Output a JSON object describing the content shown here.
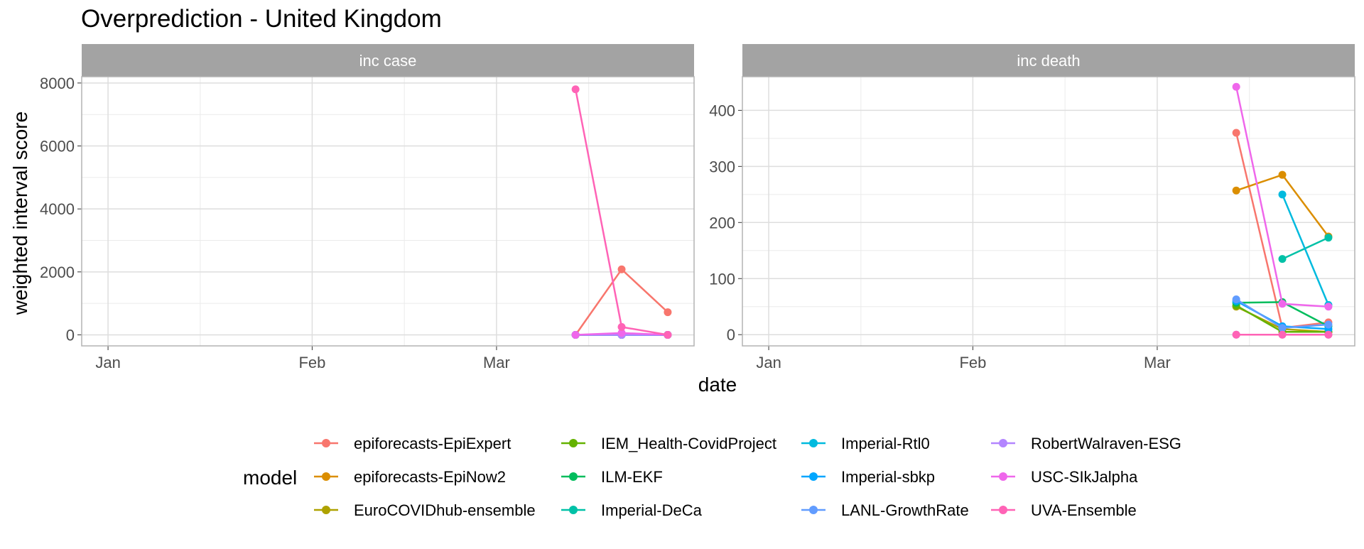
{
  "title": "Overprediction - United Kingdom",
  "xlabel": "date",
  "ylabel": "weighted interval score",
  "legend": {
    "title": "model",
    "placement": "bottom",
    "items": [
      {
        "name": "epiforecasts-EpiExpert",
        "color": "#F8766D"
      },
      {
        "name": "epiforecasts-EpiNow2",
        "color": "#DB8E00"
      },
      {
        "name": "EuroCOVIDhub-ensemble",
        "color": "#AEA200"
      },
      {
        "name": "IEM_Health-CovidProject",
        "color": "#64B200"
      },
      {
        "name": "ILM-EKF",
        "color": "#00BD5C"
      },
      {
        "name": "Imperial-DeCa",
        "color": "#00C1A7"
      },
      {
        "name": "Imperial-Rtl0",
        "color": "#00BADE"
      },
      {
        "name": "Imperial-sbkp",
        "color": "#00A6FF"
      },
      {
        "name": "LANL-GrowthRate",
        "color": "#619CFF"
      },
      {
        "name": "RobertWalraven-ESG",
        "color": "#B385FF"
      },
      {
        "name": "USC-SIkJalpha",
        "color": "#EF67EB"
      },
      {
        "name": "UVA-Ensemble",
        "color": "#FF63B6"
      }
    ]
  },
  "chart_data": [
    {
      "type": "line",
      "facet": "inc case",
      "x_ticks": [
        "Jan",
        "Feb",
        "Mar"
      ],
      "y_ticks": [
        "0",
        "2000",
        "4000",
        "6000",
        "8000"
      ],
      "ylim": [
        -350,
        8200
      ],
      "grid": true,
      "x": [
        "2021-03-13",
        "2021-03-20",
        "2021-03-27"
      ],
      "series": [
        {
          "name": "epiforecasts-EpiExpert",
          "values": [
            0,
            2080,
            720
          ]
        },
        {
          "name": "epiforecasts-EpiNow2",
          "values": [
            0,
            30,
            0
          ]
        },
        {
          "name": "EuroCOVIDhub-ensemble",
          "values": [
            0,
            0,
            0
          ]
        },
        {
          "name": "IEM_Health-CovidProject",
          "values": [
            0,
            0,
            0
          ]
        },
        {
          "name": "ILM-EKF",
          "values": [
            0,
            0,
            0
          ]
        },
        {
          "name": "Imperial-DeCa",
          "values": [
            null,
            0,
            0
          ]
        },
        {
          "name": "Imperial-Rtl0",
          "values": [
            null,
            0,
            0
          ]
        },
        {
          "name": "Imperial-sbkp",
          "values": [
            0,
            0,
            0
          ]
        },
        {
          "name": "LANL-GrowthRate",
          "values": [
            0,
            0,
            0
          ]
        },
        {
          "name": "RobertWalraven-ESG",
          "values": [
            0,
            0,
            0
          ]
        },
        {
          "name": "USC-SIkJalpha",
          "values": [
            0,
            60,
            0
          ]
        },
        {
          "name": "UVA-Ensemble",
          "values": [
            7800,
            250,
            0
          ]
        }
      ]
    },
    {
      "type": "line",
      "facet": "inc death",
      "x_ticks": [
        "Jan",
        "Feb",
        "Mar"
      ],
      "y_ticks": [
        "0",
        "100",
        "200",
        "300",
        "400"
      ],
      "ylim": [
        -20,
        460
      ],
      "grid": true,
      "x": [
        "2021-03-13",
        "2021-03-20",
        "2021-03-27"
      ],
      "series": [
        {
          "name": "epiforecasts-EpiExpert",
          "values": [
            360,
            12,
            22
          ]
        },
        {
          "name": "epiforecasts-EpiNow2",
          "values": [
            257,
            285,
            175
          ]
        },
        {
          "name": "EuroCOVIDhub-ensemble",
          "values": [
            50,
            10,
            5
          ]
        },
        {
          "name": "IEM_Health-CovidProject",
          "values": [
            52,
            5,
            5
          ]
        },
        {
          "name": "ILM-EKF",
          "values": [
            57,
            58,
            15
          ]
        },
        {
          "name": "Imperial-DeCa",
          "values": [
            null,
            135,
            173
          ]
        },
        {
          "name": "Imperial-Rtl0",
          "values": [
            null,
            250,
            53
          ]
        },
        {
          "name": "Imperial-sbkp",
          "values": [
            60,
            15,
            10
          ]
        },
        {
          "name": "LANL-GrowthRate",
          "values": [
            63,
            12,
            18
          ]
        },
        {
          "name": "RobertWalraven-ESG",
          "values": [
            0,
            0,
            0
          ]
        },
        {
          "name": "USC-SIkJalpha",
          "values": [
            442,
            55,
            50
          ]
        },
        {
          "name": "UVA-Ensemble",
          "values": [
            0,
            0,
            0
          ]
        }
      ]
    }
  ]
}
